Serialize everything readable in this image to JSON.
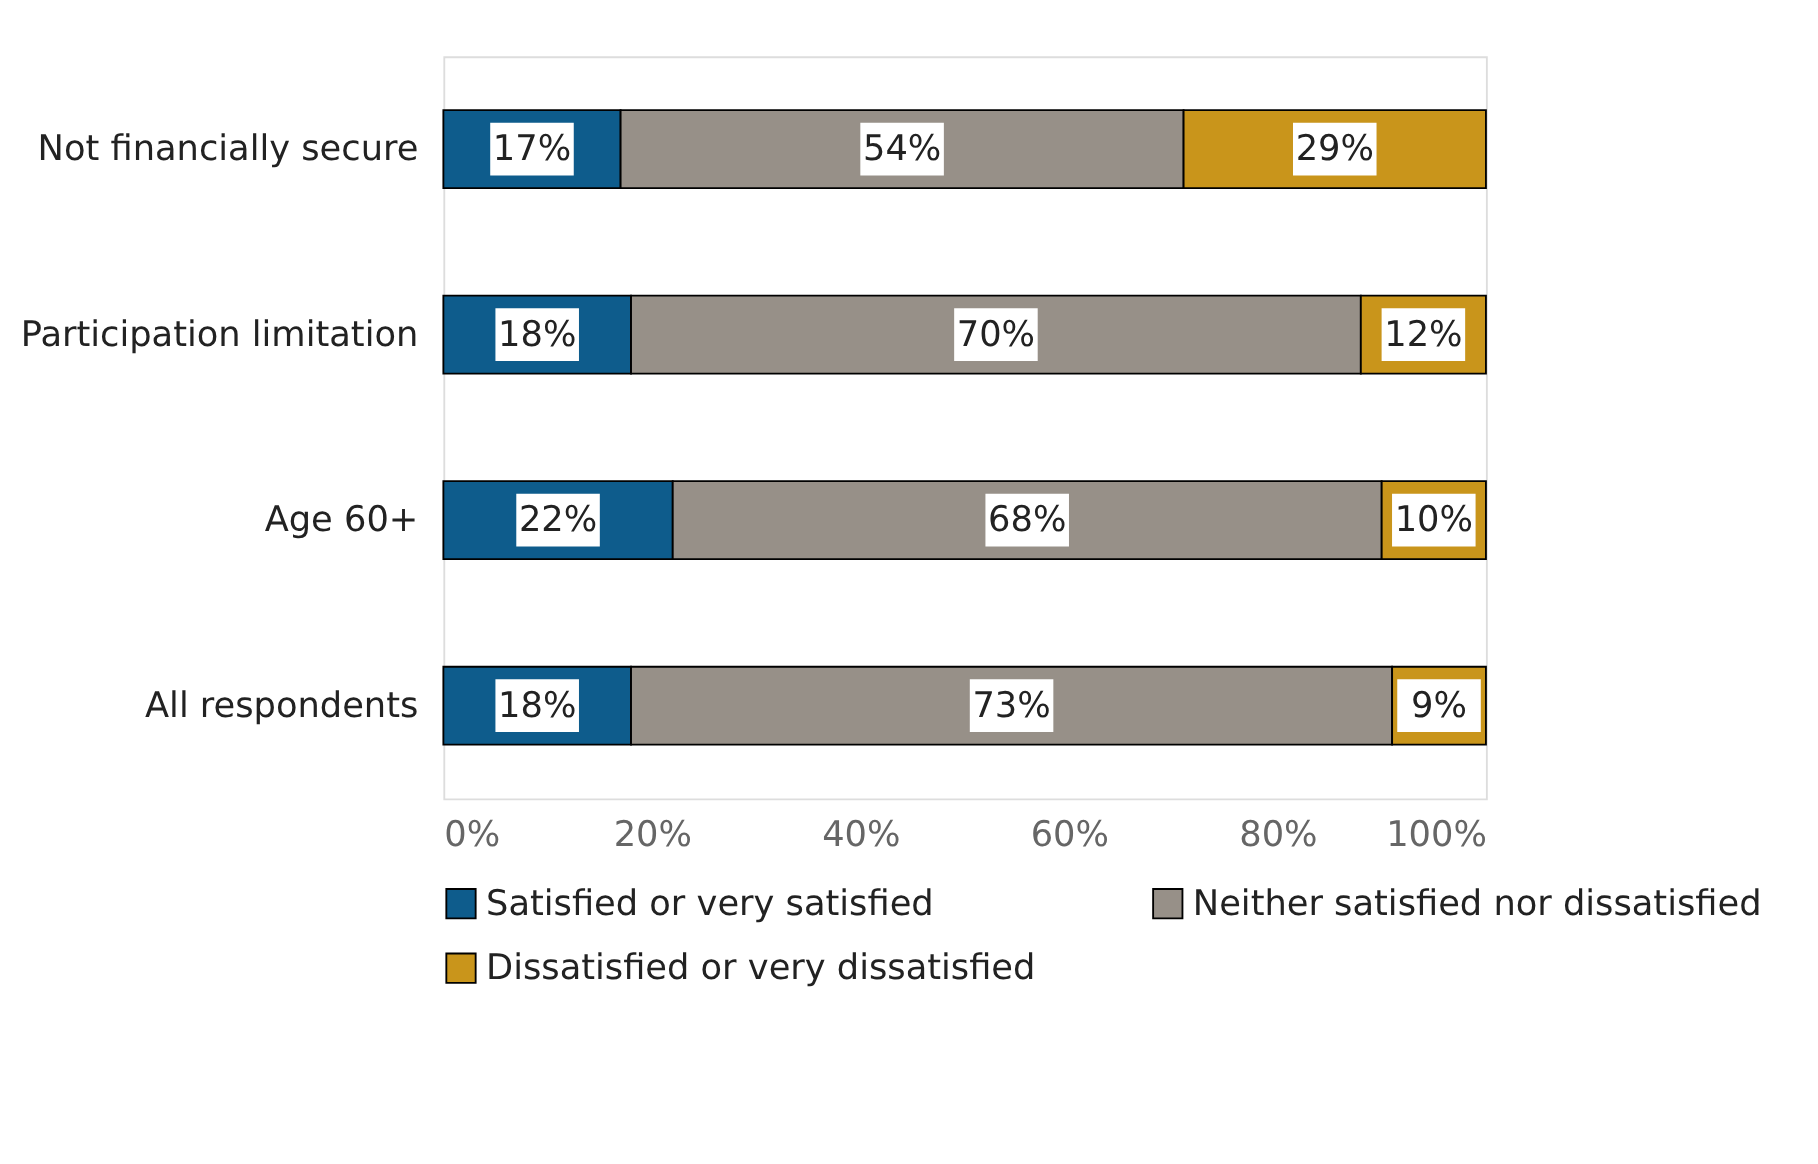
{
  "chart_data": {
    "type": "bar",
    "orientation": "horizontal",
    "stacked": true,
    "categories": [
      "Not financially secure",
      "Participation limitation",
      "Age 60+",
      "All respondents"
    ],
    "series": [
      {
        "name": "Satisfied or very satisfied",
        "color": "#0e5c8c",
        "values": [
          17,
          18,
          22,
          18
        ],
        "value_labels": [
          "17%",
          "18%",
          "22%",
          "18%"
        ]
      },
      {
        "name": "Neither satisfied nor dissatisfied",
        "color": "#979088",
        "values": [
          54,
          70,
          68,
          73
        ],
        "value_labels": [
          "54%",
          "70%",
          "68%",
          "73%"
        ]
      },
      {
        "name": "Dissatisfied or very dissatisfied",
        "color": "#c9951b",
        "values": [
          29,
          12,
          10,
          9
        ],
        "value_labels": [
          "29%",
          "12%",
          "10%",
          "9%"
        ]
      }
    ],
    "xlim": [
      0,
      100
    ],
    "xticks": [
      {
        "value": 0,
        "label": "0%"
      },
      {
        "value": 20,
        "label": "20%"
      },
      {
        "value": 40,
        "label": "40%"
      },
      {
        "value": 60,
        "label": "60%"
      },
      {
        "value": 80,
        "label": "80%"
      },
      {
        "value": 100,
        "label": "100%"
      }
    ],
    "grid": false,
    "legend": "bottom"
  }
}
